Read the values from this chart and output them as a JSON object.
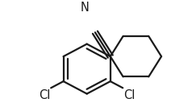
{
  "background_color": "#ffffff",
  "line_color": "#1a1a1a",
  "line_width": 1.6,
  "label_N": {
    "text": "N",
    "fontsize": 10.5
  },
  "label_Cl1": {
    "text": "Cl",
    "fontsize": 10.5
  },
  "label_Cl2": {
    "text": "Cl",
    "fontsize": 10.5
  },
  "figsize": [
    2.38,
    1.38
  ],
  "dpi": 100
}
